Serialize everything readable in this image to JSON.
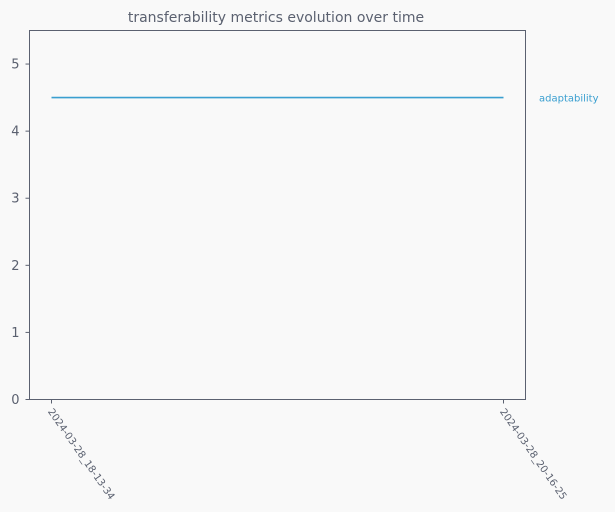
{
  "chart_data": {
    "type": "line",
    "title": "transferability metrics evolution over time",
    "xlabel": "",
    "ylabel": "",
    "categories": [
      "2024-03-28_18-13-34",
      "2024-03-28_20-16-25"
    ],
    "series": [
      {
        "name": "adaptability",
        "values": [
          4.5,
          4.5
        ],
        "color": "#3a9fd0"
      }
    ],
    "ylim": [
      0,
      5.5
    ],
    "yticks": [
      0,
      1,
      2,
      3,
      4,
      5
    ],
    "grid": false,
    "legend": "right"
  },
  "colors": {
    "background": "#f9f9f9",
    "axis": "#5b6170",
    "text": "#5b6170"
  }
}
